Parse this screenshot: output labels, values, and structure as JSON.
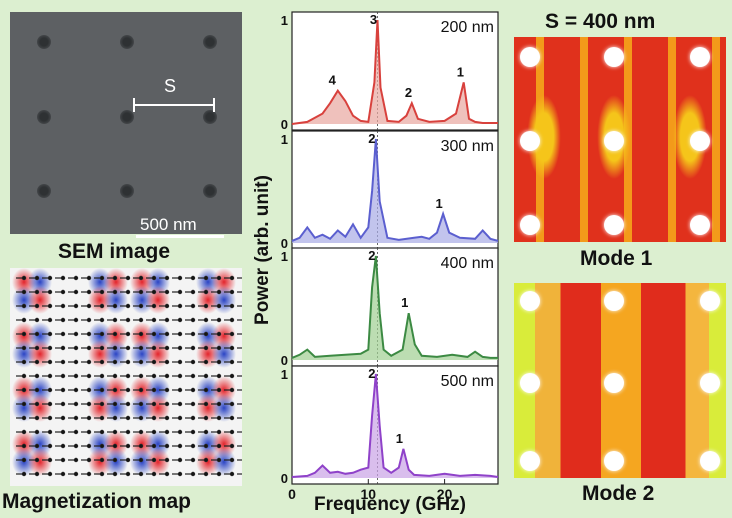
{
  "sem": {
    "spacing_label": "S",
    "scale_bar": "500 nm",
    "caption": "SEM image"
  },
  "magnetization": {
    "caption": "Magnetization map"
  },
  "chart_data": {
    "type": "line",
    "ylabel": "Power (arb. unit)",
    "xlabel": "Frequency (GHz)",
    "xlim": [
      0,
      27
    ],
    "x_ticks": [
      "0",
      "10",
      "20"
    ],
    "panels": [
      {
        "label": "200 nm",
        "color": "#d8413d",
        "fill": "#e8a7a0",
        "ylim": [
          0,
          1
        ],
        "y_ticks": [
          "1",
          "0"
        ],
        "x": [
          0,
          2,
          4,
          5,
          6,
          7,
          8,
          9,
          10,
          10.8,
          11.2,
          11.6,
          12.5,
          14,
          15,
          15.7,
          16.5,
          18,
          20,
          21.5,
          22.5,
          23.2,
          24,
          25,
          27
        ],
        "y": [
          0,
          0.02,
          0.1,
          0.2,
          0.32,
          0.22,
          0.08,
          0.03,
          0.02,
          0.4,
          1.0,
          0.35,
          0.03,
          0.02,
          0.08,
          0.2,
          0.05,
          0.02,
          0.03,
          0.1,
          0.4,
          0.05,
          0.02,
          0.01,
          0.01
        ],
        "peaks": [
          {
            "label": "4",
            "x": 5.8
          },
          {
            "label": "3",
            "x": 11.2
          },
          {
            "label": "2",
            "x": 15.8
          },
          {
            "label": "1",
            "x": 22.6
          }
        ]
      },
      {
        "label": "300 nm",
        "color": "#5b5fcf",
        "fill": "#a8abe6",
        "ylim": [
          0,
          1
        ],
        "y_ticks": [
          "1",
          "0"
        ],
        "x": [
          0,
          1,
          2,
          3,
          4,
          5,
          6,
          7,
          8,
          9,
          10,
          10.5,
          11,
          11.5,
          12.5,
          14,
          16,
          17,
          18,
          19,
          19.8,
          20.6,
          22,
          24,
          25,
          26,
          27
        ],
        "y": [
          0.02,
          0.05,
          0.15,
          0.05,
          0.08,
          0.04,
          0.12,
          0.06,
          0.18,
          0.05,
          0.15,
          0.5,
          1.0,
          0.4,
          0.05,
          0.03,
          0.05,
          0.06,
          0.04,
          0.1,
          0.28,
          0.1,
          0.05,
          0.04,
          0.12,
          0.04,
          0.02
        ],
        "peaks": [
          {
            "label": "2",
            "x": 11.0
          },
          {
            "label": "1",
            "x": 19.8
          }
        ]
      },
      {
        "label": "400 nm",
        "color": "#3c8a43",
        "fill": "#9fcf92",
        "ylim": [
          0,
          1
        ],
        "y_ticks": [
          "1",
          "0"
        ],
        "x": [
          0,
          1,
          2,
          3,
          5,
          7,
          9,
          10,
          10.5,
          11,
          11.5,
          12,
          13,
          14.5,
          15.3,
          16.1,
          17,
          19,
          21,
          23,
          24,
          25,
          26,
          27
        ],
        "y": [
          0.02,
          0.05,
          0.1,
          0.03,
          0.04,
          0.05,
          0.06,
          0.1,
          0.7,
          1.0,
          0.45,
          0.1,
          0.04,
          0.1,
          0.45,
          0.15,
          0.04,
          0.03,
          0.05,
          0.03,
          0.08,
          0.03,
          0.02,
          0.02
        ],
        "peaks": [
          {
            "label": "2",
            "x": 11.0
          },
          {
            "label": "1",
            "x": 15.3
          }
        ]
      },
      {
        "label": "500 nm",
        "color": "#8f42c9",
        "fill": "#c9a2e6",
        "ylim": [
          0,
          1
        ],
        "y_ticks": [
          "1",
          "0"
        ],
        "x": [
          0,
          2,
          3,
          4,
          5,
          6,
          7,
          8,
          9,
          10,
          10.5,
          11,
          11.5,
          12,
          13,
          14,
          14.6,
          15.3,
          16,
          18,
          20,
          22,
          24,
          26,
          27
        ],
        "y": [
          0.01,
          0.02,
          0.05,
          0.12,
          0.05,
          0.06,
          0.04,
          0.05,
          0.08,
          0.1,
          0.6,
          1.0,
          0.5,
          0.1,
          0.05,
          0.1,
          0.28,
          0.08,
          0.03,
          0.02,
          0.04,
          0.02,
          0.03,
          0.02,
          0.01
        ],
        "peaks": [
          {
            "label": "2",
            "x": 11.0
          },
          {
            "label": "1",
            "x": 14.6
          }
        ]
      }
    ]
  },
  "modes": {
    "title": "S = 400 nm",
    "mode1_caption": "Mode 1",
    "mode2_caption": "Mode 2"
  },
  "colors": {
    "background": "#dcefd0",
    "sem_gray": "#5d6063",
    "mode_red": "#e0311c",
    "mode_yellow": "#f5c51a"
  }
}
